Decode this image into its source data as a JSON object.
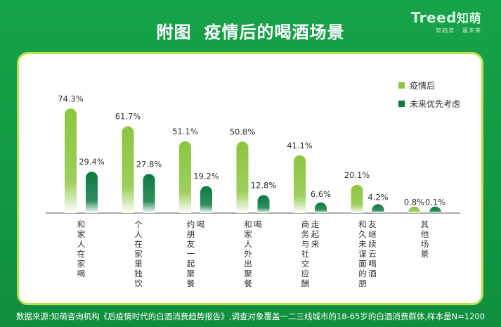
{
  "page": {
    "title_part1": "附图",
    "title_part2": "疫情后的喝酒场景",
    "logo_text": "Treed",
    "logo_cn": "知萌",
    "logo_sub": "知趋势 · 赢未来",
    "footer": "数据来源:知萌咨询机构《后疫情时代的白酒消费趋势报告》,调查对象覆盖一二三线城市的18-65岁的白酒消费群体,样本量N=1200"
  },
  "colors": {
    "bg": "#14a045",
    "card_border": "#b8e14d",
    "series1_top": "#8cc63f",
    "series1_bottom": "#ffffff",
    "series2_top": "#0c7a43",
    "series2_bottom": "#ffffff",
    "axis": "#555555"
  },
  "chart_data": {
    "type": "bar",
    "categories": [
      "和家人在家喝",
      "个人在家里独饮",
      "约朋友一起聚餐喝",
      "和家人外出聚餐喝",
      "商务与社交应酬走起来",
      "和久未谋面的朋友继续云喝酒",
      "其他场景"
    ],
    "series": [
      {
        "name": "疫情后",
        "values": [
          74.3,
          61.7,
          51.1,
          50.8,
          41.1,
          20.1,
          0.8
        ]
      },
      {
        "name": "未来优先考虑",
        "values": [
          29.4,
          27.8,
          19.2,
          12.8,
          6.6,
          4.2,
          0.1
        ]
      }
    ],
    "value_format": "%",
    "ylim": [
      0,
      80
    ],
    "grid": false,
    "legend_position": "top-right"
  }
}
